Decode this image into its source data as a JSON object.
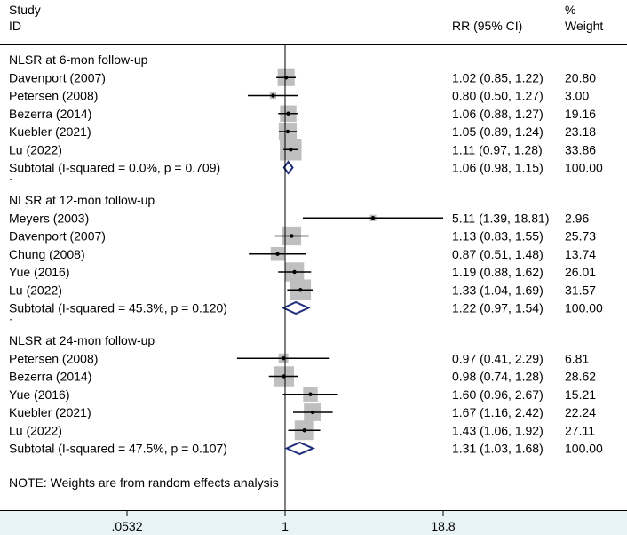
{
  "header": {
    "study_line1": "Study",
    "study_line2": "ID",
    "rr": "RR (95% CI)",
    "weight_line1": "%",
    "weight_line2": "Weight"
  },
  "note": "NOTE: Weights are from random effects analysis",
  "colors": {
    "box": "#bfbfbf",
    "diamond": "#1f2d7a",
    "axis_band": "#e8f3f5"
  },
  "chart_data": {
    "type": "forest",
    "scale": "log",
    "xlim": [
      0.0532,
      18.8
    ],
    "xticks": [
      0.0532,
      1,
      18.8
    ],
    "xtick_labels": [
      ".0532",
      "1",
      "18.8"
    ],
    "reference_line": 1,
    "groups": [
      {
        "label": "NLSR at 6-mon follow-up",
        "studies": [
          {
            "name": "Davenport (2007)",
            "rr": 1.02,
            "lo": 0.85,
            "hi": 1.22,
            "ci_text": "1.02 (0.85, 1.22)",
            "weight": 20.8,
            "weight_text": "20.80"
          },
          {
            "name": "Petersen (2008)",
            "rr": 0.8,
            "lo": 0.5,
            "hi": 1.27,
            "ci_text": "0.80 (0.50, 1.27)",
            "weight": 3.0,
            "weight_text": "3.00"
          },
          {
            "name": "Bezerra (2014)",
            "rr": 1.06,
            "lo": 0.88,
            "hi": 1.27,
            "ci_text": "1.06 (0.88, 1.27)",
            "weight": 19.16,
            "weight_text": "19.16"
          },
          {
            "name": "Kuebler (2021)",
            "rr": 1.05,
            "lo": 0.89,
            "hi": 1.24,
            "ci_text": "1.05 (0.89, 1.24)",
            "weight": 23.18,
            "weight_text": "23.18"
          },
          {
            "name": "Lu (2022)",
            "rr": 1.11,
            "lo": 0.97,
            "hi": 1.28,
            "ci_text": "1.11 (0.97, 1.28)",
            "weight": 33.86,
            "weight_text": "33.86"
          }
        ],
        "subtotal": {
          "label": "Subtotal  (I-squared = 0.0%, p = 0.709)",
          "rr": 1.06,
          "lo": 0.98,
          "hi": 1.15,
          "ci_text": "1.06 (0.98, 1.15)",
          "weight_text": "100.00"
        }
      },
      {
        "label": "NLSR at 12-mon follow-up",
        "studies": [
          {
            "name": "Meyers (2003)",
            "rr": 5.11,
            "lo": 1.39,
            "hi": 18.81,
            "ci_text": "5.11 (1.39, 18.81)",
            "weight": 2.96,
            "weight_text": "2.96"
          },
          {
            "name": "Davenport (2007)",
            "rr": 1.13,
            "lo": 0.83,
            "hi": 1.55,
            "ci_text": "1.13 (0.83, 1.55)",
            "weight": 25.73,
            "weight_text": "25.73"
          },
          {
            "name": "Chung (2008)",
            "rr": 0.87,
            "lo": 0.51,
            "hi": 1.48,
            "ci_text": "0.87 (0.51, 1.48)",
            "weight": 13.74,
            "weight_text": "13.74"
          },
          {
            "name": "Yue (2016)",
            "rr": 1.19,
            "lo": 0.88,
            "hi": 1.62,
            "ci_text": "1.19 (0.88, 1.62)",
            "weight": 26.01,
            "weight_text": "26.01"
          },
          {
            "name": "Lu (2022)",
            "rr": 1.33,
            "lo": 1.04,
            "hi": 1.69,
            "ci_text": "1.33 (1.04, 1.69)",
            "weight": 31.57,
            "weight_text": "31.57"
          }
        ],
        "subtotal": {
          "label": "Subtotal  (I-squared = 45.3%, p = 0.120)",
          "rr": 1.22,
          "lo": 0.97,
          "hi": 1.54,
          "ci_text": "1.22 (0.97, 1.54)",
          "weight_text": "100.00"
        }
      },
      {
        "label": "NLSR at 24-mon follow-up",
        "studies": [
          {
            "name": "Petersen (2008)",
            "rr": 0.97,
            "lo": 0.41,
            "hi": 2.29,
            "ci_text": "0.97 (0.41, 2.29)",
            "weight": 6.81,
            "weight_text": "6.81"
          },
          {
            "name": "Bezerra (2014)",
            "rr": 0.98,
            "lo": 0.74,
            "hi": 1.28,
            "ci_text": "0.98 (0.74, 1.28)",
            "weight": 28.62,
            "weight_text": "28.62"
          },
          {
            "name": "Yue (2016)",
            "rr": 1.6,
            "lo": 0.96,
            "hi": 2.67,
            "ci_text": "1.60 (0.96, 2.67)",
            "weight": 15.21,
            "weight_text": "15.21"
          },
          {
            "name": "Kuebler (2021)",
            "rr": 1.67,
            "lo": 1.16,
            "hi": 2.42,
            "ci_text": "1.67 (1.16, 2.42)",
            "weight": 22.24,
            "weight_text": "22.24"
          },
          {
            "name": "Lu (2022)",
            "rr": 1.43,
            "lo": 1.06,
            "hi": 1.92,
            "ci_text": "1.43 (1.06, 1.92)",
            "weight": 27.11,
            "weight_text": "27.11"
          }
        ],
        "subtotal": {
          "label": "Subtotal  (I-squared = 47.5%, p = 0.107)",
          "rr": 1.31,
          "lo": 1.03,
          "hi": 1.68,
          "ci_text": "1.31 (1.03, 1.68)",
          "weight_text": "100.00"
        }
      }
    ]
  }
}
